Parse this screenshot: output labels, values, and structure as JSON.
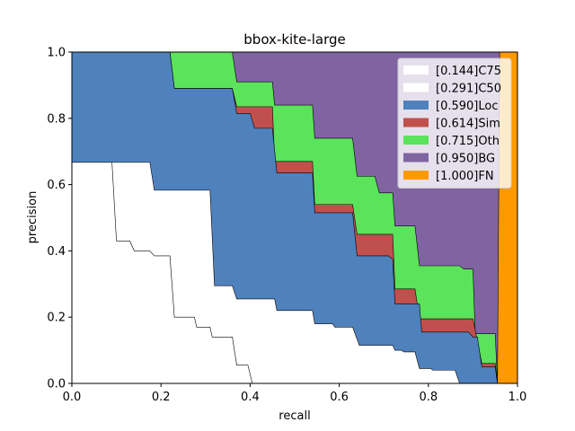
{
  "chart_data": {
    "type": "area",
    "title": "bbox-kite-large",
    "xlabel": "recall",
    "ylabel": "precision",
    "xlim": [
      0,
      1
    ],
    "ylim": [
      0,
      1
    ],
    "xticks": [
      "0.0",
      "0.2",
      "0.4",
      "0.6",
      "0.8",
      "1.0"
    ],
    "yticks": [
      "0.0",
      "0.2",
      "0.4",
      "0.6",
      "0.8",
      "1.0"
    ],
    "legend_position": "top-right",
    "series": [
      {
        "name": "[0.144]C75",
        "color": "#ffffff",
        "points": [
          [
            0,
            0.667
          ],
          [
            0.09,
            0.667
          ],
          [
            0.1,
            0.43
          ],
          [
            0.13,
            0.43
          ],
          [
            0.14,
            0.4
          ],
          [
            0.175,
            0.4
          ],
          [
            0.185,
            0.385
          ],
          [
            0.22,
            0.385
          ],
          [
            0.23,
            0.2
          ],
          [
            0.275,
            0.2
          ],
          [
            0.28,
            0.17
          ],
          [
            0.31,
            0.17
          ],
          [
            0.315,
            0.14
          ],
          [
            0.36,
            0.14
          ],
          [
            0.37,
            0.055
          ],
          [
            0.395,
            0.055
          ],
          [
            0.405,
            0
          ],
          [
            1,
            0
          ]
        ]
      },
      {
        "name": "[0.291]C50",
        "color": "#ffffff",
        "points": [
          [
            0,
            0.667
          ],
          [
            0.175,
            0.667
          ],
          [
            0.185,
            0.583
          ],
          [
            0.31,
            0.583
          ],
          [
            0.32,
            0.295
          ],
          [
            0.36,
            0.295
          ],
          [
            0.37,
            0.255
          ],
          [
            0.455,
            0.255
          ],
          [
            0.46,
            0.22
          ],
          [
            0.54,
            0.22
          ],
          [
            0.545,
            0.18
          ],
          [
            0.585,
            0.18
          ],
          [
            0.59,
            0.17
          ],
          [
            0.63,
            0.17
          ],
          [
            0.645,
            0.115
          ],
          [
            0.72,
            0.115
          ],
          [
            0.725,
            0.1
          ],
          [
            0.74,
            0.1
          ],
          [
            0.745,
            0.095
          ],
          [
            0.77,
            0.095
          ],
          [
            0.78,
            0.045
          ],
          [
            0.805,
            0.045
          ],
          [
            0.81,
            0.04
          ],
          [
            0.86,
            0.04
          ],
          [
            0.87,
            0
          ],
          [
            1,
            0
          ]
        ]
      },
      {
        "name": "[0.590]Loc",
        "color": "#4f81bd",
        "points": [
          [
            0,
            1.0
          ],
          [
            0.22,
            1.0
          ],
          [
            0.23,
            0.89
          ],
          [
            0.36,
            0.89
          ],
          [
            0.37,
            0.815
          ],
          [
            0.4,
            0.815
          ],
          [
            0.41,
            0.77
          ],
          [
            0.45,
            0.77
          ],
          [
            0.46,
            0.635
          ],
          [
            0.54,
            0.635
          ],
          [
            0.545,
            0.515
          ],
          [
            0.63,
            0.515
          ],
          [
            0.64,
            0.385
          ],
          [
            0.71,
            0.385
          ],
          [
            0.72,
            0.375
          ],
          [
            0.725,
            0.24
          ],
          [
            0.78,
            0.24
          ],
          [
            0.785,
            0.155
          ],
          [
            0.89,
            0.155
          ],
          [
            0.9,
            0.14
          ],
          [
            0.91,
            0.14
          ],
          [
            0.92,
            0.05
          ],
          [
            0.95,
            0.05
          ],
          [
            0.955,
            0
          ],
          [
            1,
            0
          ]
        ]
      },
      {
        "name": "[0.614]Sim",
        "color": "#c0504d",
        "points": [
          [
            0,
            1.0
          ],
          [
            0.22,
            1.0
          ],
          [
            0.23,
            0.89
          ],
          [
            0.36,
            0.89
          ],
          [
            0.37,
            0.835
          ],
          [
            0.45,
            0.835
          ],
          [
            0.455,
            0.67
          ],
          [
            0.54,
            0.67
          ],
          [
            0.545,
            0.54
          ],
          [
            0.63,
            0.54
          ],
          [
            0.64,
            0.45
          ],
          [
            0.72,
            0.45
          ],
          [
            0.725,
            0.285
          ],
          [
            0.77,
            0.285
          ],
          [
            0.78,
            0.195
          ],
          [
            0.9,
            0.195
          ],
          [
            0.92,
            0.06
          ],
          [
            0.95,
            0.06
          ],
          [
            0.955,
            0
          ],
          [
            1,
            0
          ]
        ]
      },
      {
        "name": "[0.715]Oth",
        "color": "#5be35b",
        "points": [
          [
            0,
            1.0
          ],
          [
            0.36,
            1.0
          ],
          [
            0.37,
            0.91
          ],
          [
            0.45,
            0.91
          ],
          [
            0.455,
            0.84
          ],
          [
            0.54,
            0.84
          ],
          [
            0.545,
            0.74
          ],
          [
            0.63,
            0.74
          ],
          [
            0.64,
            0.625
          ],
          [
            0.68,
            0.625
          ],
          [
            0.69,
            0.575
          ],
          [
            0.72,
            0.575
          ],
          [
            0.725,
            0.475
          ],
          [
            0.77,
            0.475
          ],
          [
            0.78,
            0.355
          ],
          [
            0.87,
            0.355
          ],
          [
            0.88,
            0.345
          ],
          [
            0.9,
            0.345
          ],
          [
            0.905,
            0.15
          ],
          [
            0.95,
            0.15
          ],
          [
            0.955,
            0
          ],
          [
            1,
            0
          ]
        ]
      },
      {
        "name": "[0.950]BG",
        "color": "#8064a2",
        "points": [
          [
            0,
            1.0
          ],
          [
            0.96,
            1.0
          ],
          [
            0.955,
            0
          ],
          [
            1,
            0
          ]
        ]
      },
      {
        "name": "[1.000]FN",
        "color": "#ff9900",
        "points": [
          [
            0,
            1.0
          ],
          [
            1,
            1.0
          ],
          [
            1,
            0
          ]
        ]
      }
    ]
  }
}
